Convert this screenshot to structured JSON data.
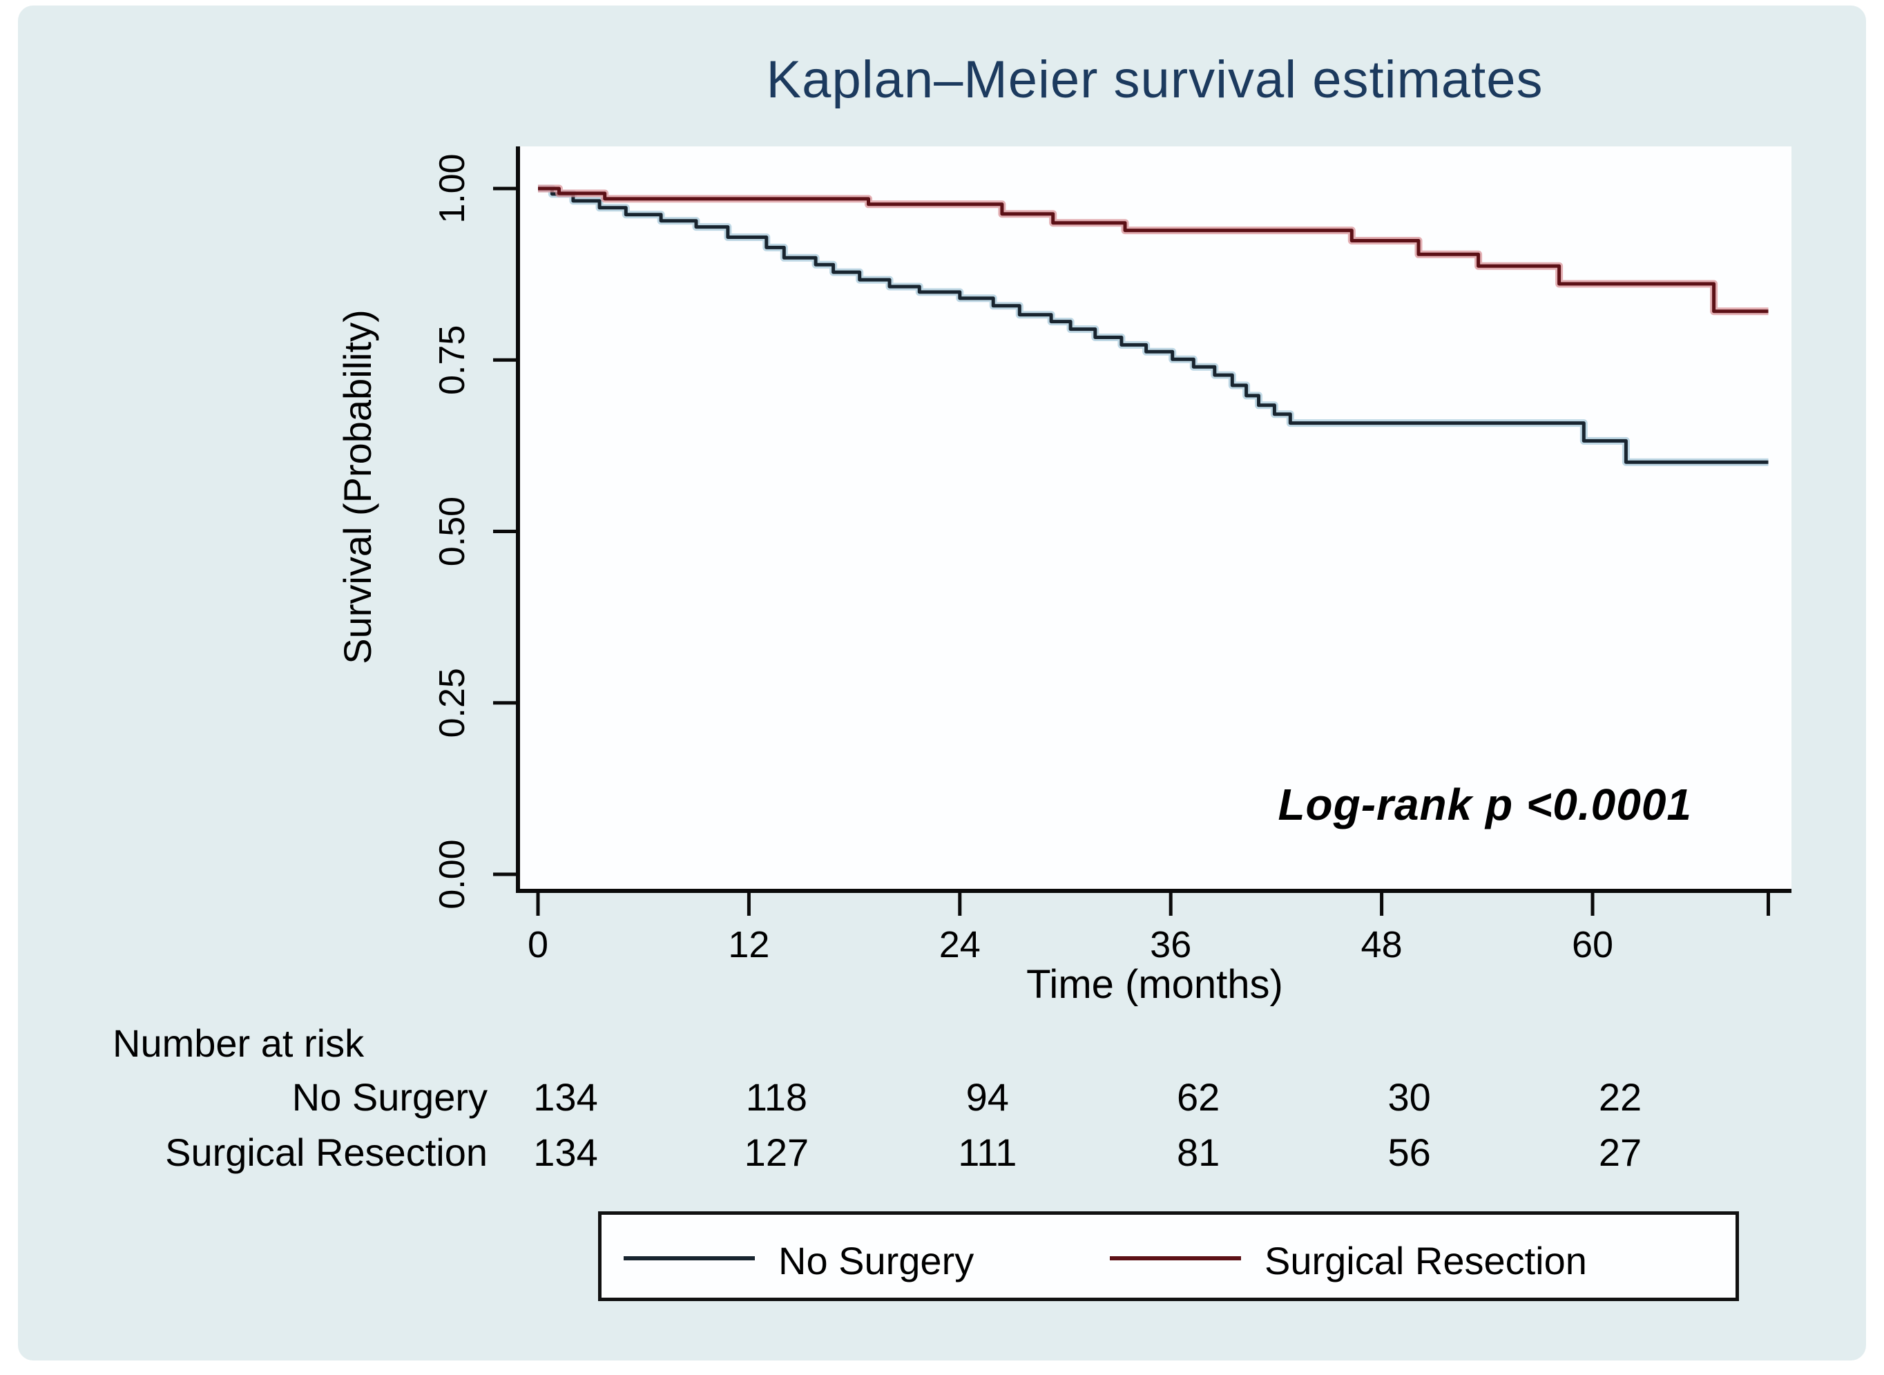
{
  "page": {
    "background": "#ffffff",
    "panel_bg": "#e2edef",
    "plot_bg": "#fdfeff"
  },
  "title": {
    "text": "Kaplan–Meier survival estimates",
    "color": "#1c3a5e"
  },
  "y_axis": {
    "label": "Survival (Probability)",
    "tick_labels": [
      "1.00",
      "0.75",
      "0.50",
      "0.25",
      "0.00"
    ],
    "tick_values": [
      1.0,
      0.75,
      0.5,
      0.25,
      0.0
    ]
  },
  "x_axis": {
    "label": "Time (months)",
    "tick_labels": [
      "0",
      "12",
      "24",
      "36",
      "48",
      "60"
    ],
    "tick_values": [
      0,
      12,
      24,
      36,
      48,
      60
    ],
    "end_tick_value": 70
  },
  "annotation": {
    "text": "Log-rank p <0.0001"
  },
  "risk_table": {
    "header": "Number at risk",
    "time_points": [
      0,
      12,
      24,
      36,
      48,
      60
    ],
    "rows": [
      {
        "label": "No Surgery",
        "values": [
          "134",
          "118",
          "94",
          "62",
          "30",
          "22"
        ]
      },
      {
        "label": "Surgical Resection",
        "values": [
          "134",
          "127",
          "111",
          "81",
          "56",
          "27"
        ]
      }
    ]
  },
  "legend": {
    "items": [
      {
        "label": "No Surgery",
        "color": "#18242f"
      },
      {
        "label": "Surgical Resection",
        "color": "#5c1016"
      }
    ]
  },
  "chart_data": {
    "type": "line",
    "subtype": "kaplan-meier-step",
    "title": "Kaplan–Meier survival estimates",
    "xlabel": "Time (months)",
    "ylabel": "Survival (Probability)",
    "xlim": [
      0,
      71.5
    ],
    "ylim": [
      0.0,
      1.0
    ],
    "x_ticks": [
      0,
      12,
      24,
      36,
      48,
      60
    ],
    "y_ticks": [
      0.0,
      0.25,
      0.5,
      0.75,
      1.0
    ],
    "grid": false,
    "legend_position": "bottom",
    "annotation": "Log-rank p <0.0001",
    "series": [
      {
        "name": "No Surgery",
        "color": "#18242f",
        "halo": "#a9cbdc",
        "step_points": [
          [
            0,
            1.0
          ],
          [
            0.8,
            0.992
          ],
          [
            2,
            0.982
          ],
          [
            3.5,
            0.972
          ],
          [
            5,
            0.962
          ],
          [
            7,
            0.953
          ],
          [
            9,
            0.944
          ],
          [
            10.8,
            0.929
          ],
          [
            13,
            0.914
          ],
          [
            14,
            0.899
          ],
          [
            15.8,
            0.889
          ],
          [
            16.8,
            0.878
          ],
          [
            18.3,
            0.867
          ],
          [
            20,
            0.857
          ],
          [
            21.7,
            0.849
          ],
          [
            24,
            0.84
          ],
          [
            25.9,
            0.829
          ],
          [
            27.4,
            0.816
          ],
          [
            29.2,
            0.806
          ],
          [
            30.3,
            0.795
          ],
          [
            31.7,
            0.783
          ],
          [
            33.2,
            0.772
          ],
          [
            34.6,
            0.762
          ],
          [
            36.1,
            0.751
          ],
          [
            37.3,
            0.74
          ],
          [
            38.5,
            0.728
          ],
          [
            39.5,
            0.713
          ],
          [
            40.3,
            0.698
          ],
          [
            41,
            0.684
          ],
          [
            41.9,
            0.671
          ],
          [
            42.8,
            0.658
          ],
          [
            59.5,
            0.632
          ],
          [
            61.9,
            0.601
          ],
          [
            70,
            0.601
          ]
        ]
      },
      {
        "name": "Surgical Resection",
        "color": "#5c1016",
        "halo": "#d9949a",
        "step_points": [
          [
            0,
            1.0
          ],
          [
            1.2,
            0.993
          ],
          [
            3.8,
            0.985
          ],
          [
            18.8,
            0.977
          ],
          [
            26.4,
            0.963
          ],
          [
            29.3,
            0.95
          ],
          [
            33.4,
            0.939
          ],
          [
            46.3,
            0.924
          ],
          [
            50.1,
            0.904
          ],
          [
            53.5,
            0.887
          ],
          [
            58.1,
            0.861
          ],
          [
            66.9,
            0.821
          ],
          [
            70,
            0.821
          ]
        ]
      }
    ],
    "number_at_risk": {
      "time_points": [
        0,
        12,
        24,
        36,
        48,
        60
      ],
      "No Surgery": [
        134,
        118,
        94,
        62,
        30,
        22
      ],
      "Surgical Resection": [
        134,
        127,
        111,
        81,
        56,
        27
      ]
    }
  }
}
